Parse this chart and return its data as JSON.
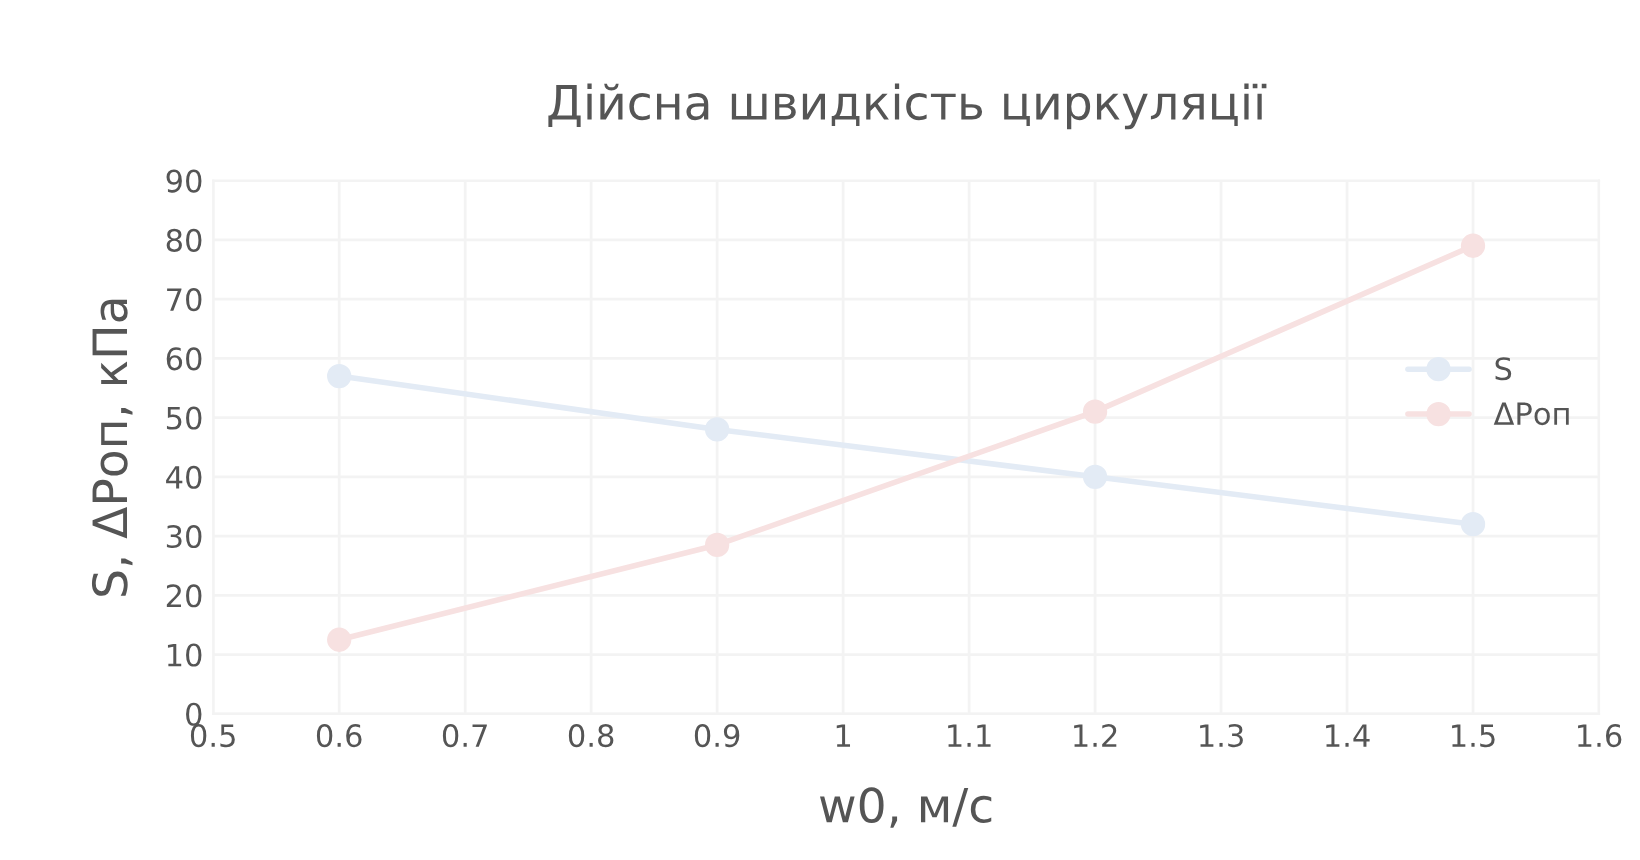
{
  "chart_data": {
    "type": "line",
    "title": "Дійсна швидкість циркуляції",
    "xlabel": "w0, м/с",
    "ylabel": "S, ΔPоп, кПа",
    "x": [
      0.6,
      0.9,
      1.2,
      1.5
    ],
    "series": [
      {
        "name": "S",
        "color": "#e3ebf5",
        "values": [
          57,
          48,
          40,
          32
        ]
      },
      {
        "name": "ΔPоп",
        "color": "#f7e1e1",
        "values": [
          12.5,
          28.5,
          51,
          79
        ]
      }
    ],
    "xlim": [
      0.5,
      1.6
    ],
    "xticks": [
      0.5,
      0.6,
      0.7,
      0.8,
      0.9,
      1,
      1.1,
      1.2,
      1.3,
      1.4,
      1.5,
      1.6
    ],
    "ylim": [
      0,
      90
    ],
    "yticks": [
      0,
      10,
      20,
      30,
      40,
      50,
      60,
      70,
      80,
      90
    ],
    "grid": true,
    "legend": "right",
    "marker": "circle",
    "line_style": "solid"
  }
}
